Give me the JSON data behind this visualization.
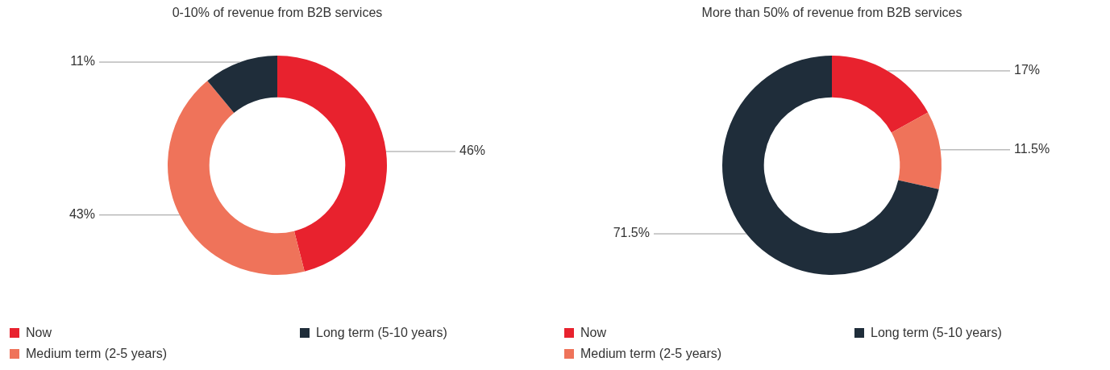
{
  "chart_data": [
    {
      "type": "donut",
      "title": "0-10% of revenue from B2B services",
      "categories": [
        "Now",
        "Medium term (2-5 years)",
        "Long term (5-10 years)"
      ],
      "values": [
        46,
        43,
        11
      ],
      "value_labels": [
        "46%",
        "43%",
        "11%"
      ],
      "colors": [
        "#e8222e",
        "#ef735a",
        "#1f2d3a"
      ],
      "legend": "bottom"
    },
    {
      "type": "donut",
      "title": "More than 50% of revenue from B2B services",
      "categories": [
        "Now",
        "Medium term (2-5 years)",
        "Long term (5-10 years)"
      ],
      "values": [
        17,
        11.5,
        71.5
      ],
      "value_labels": [
        "17%",
        "11.5%",
        "71.5%"
      ],
      "colors": [
        "#e8222e",
        "#ef735a",
        "#1f2d3a"
      ],
      "legend": "bottom"
    }
  ]
}
